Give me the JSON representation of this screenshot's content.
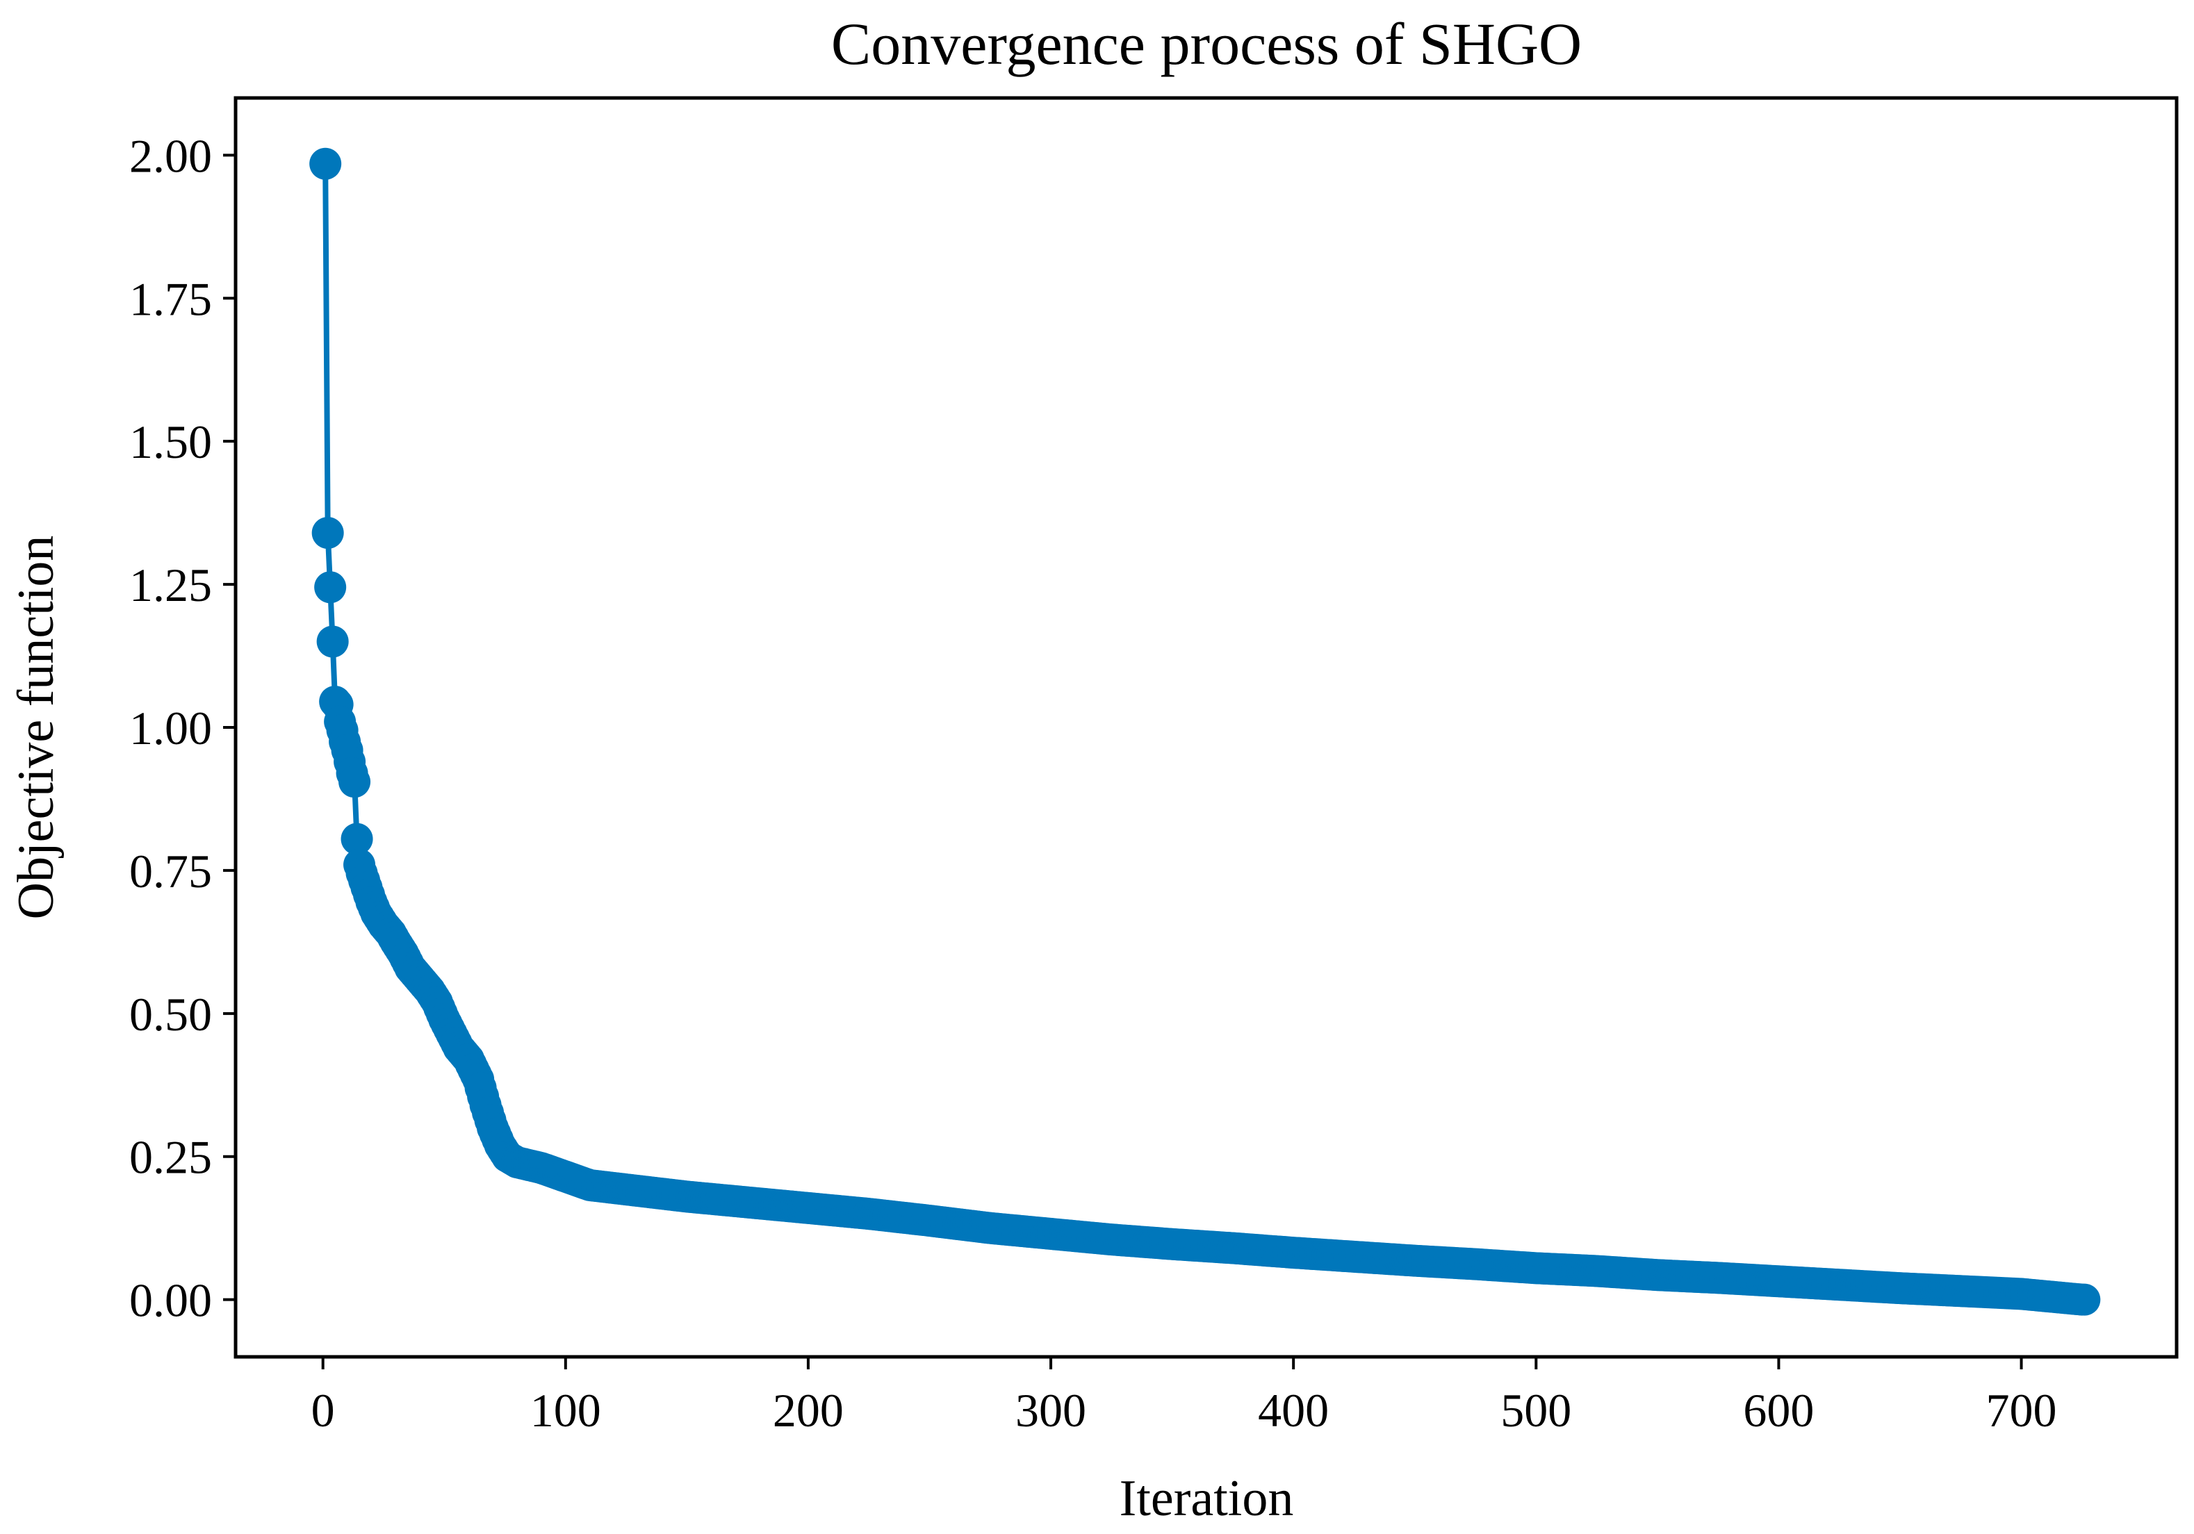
{
  "chart_data": {
    "type": "line",
    "title": "Convergence process of SHGO",
    "xlabel": "Iteration",
    "ylabel": "Objective function",
    "xlim": [
      -36,
      764
    ],
    "ylim": [
      -0.1,
      2.1
    ],
    "x_ticks": [
      0,
      100,
      200,
      300,
      400,
      500,
      600,
      700
    ],
    "x_tick_labels": [
      "0",
      "100",
      "200",
      "300",
      "400",
      "500",
      "600",
      "700"
    ],
    "y_ticks": [
      0.0,
      0.25,
      0.5,
      0.75,
      1.0,
      1.25,
      1.5,
      1.75,
      2.0
    ],
    "y_tick_labels": [
      "0.00",
      "0.25",
      "0.50",
      "0.75",
      "1.00",
      "1.25",
      "1.50",
      "1.75",
      "2.00"
    ],
    "grid": false,
    "series": [
      {
        "name": "Objective function",
        "color": "#0077bb",
        "marker": "circle",
        "points_total": 726,
        "anchor_points": [
          [
            1,
            1.985
          ],
          [
            2,
            1.34
          ],
          [
            3,
            1.245
          ],
          [
            4,
            1.15
          ],
          [
            5,
            1.045
          ],
          [
            6,
            1.04
          ],
          [
            7,
            1.01
          ],
          [
            8,
            0.995
          ],
          [
            9,
            0.975
          ],
          [
            10,
            0.96
          ],
          [
            11,
            0.94
          ],
          [
            12,
            0.92
          ],
          [
            13,
            0.905
          ],
          [
            14,
            0.805
          ],
          [
            15,
            0.76
          ],
          [
            16,
            0.745
          ],
          [
            18,
            0.72
          ],
          [
            20,
            0.695
          ],
          [
            22,
            0.675
          ],
          [
            25,
            0.655
          ],
          [
            28,
            0.64
          ],
          [
            30,
            0.625
          ],
          [
            33,
            0.605
          ],
          [
            36,
            0.58
          ],
          [
            40,
            0.56
          ],
          [
            44,
            0.54
          ],
          [
            47,
            0.52
          ],
          [
            50,
            0.49
          ],
          [
            53,
            0.465
          ],
          [
            56,
            0.44
          ],
          [
            60,
            0.42
          ],
          [
            64,
            0.385
          ],
          [
            67,
            0.34
          ],
          [
            70,
            0.3
          ],
          [
            73,
            0.27
          ],
          [
            76,
            0.25
          ],
          [
            80,
            0.24
          ],
          [
            90,
            0.23
          ],
          [
            100,
            0.215
          ],
          [
            110,
            0.2
          ],
          [
            130,
            0.19
          ],
          [
            150,
            0.18
          ],
          [
            175,
            0.17
          ],
          [
            200,
            0.16
          ],
          [
            225,
            0.15
          ],
          [
            250,
            0.138
          ],
          [
            275,
            0.125
          ],
          [
            300,
            0.115
          ],
          [
            325,
            0.105
          ],
          [
            350,
            0.097
          ],
          [
            375,
            0.09
          ],
          [
            400,
            0.082
          ],
          [
            425,
            0.075
          ],
          [
            450,
            0.068
          ],
          [
            475,
            0.062
          ],
          [
            500,
            0.055
          ],
          [
            525,
            0.05
          ],
          [
            550,
            0.043
          ],
          [
            575,
            0.038
          ],
          [
            600,
            0.032
          ],
          [
            625,
            0.026
          ],
          [
            650,
            0.02
          ],
          [
            675,
            0.015
          ],
          [
            700,
            0.01
          ],
          [
            725,
            0.0
          ]
        ]
      }
    ]
  }
}
